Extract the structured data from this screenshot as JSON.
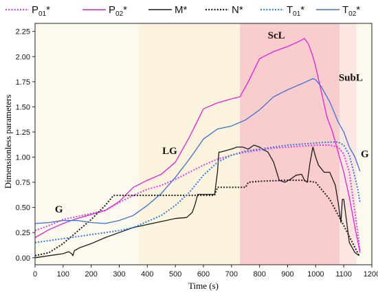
{
  "chart_data": {
    "type": "line",
    "xlabel": "Time (s)",
    "ylabel": "Dimensionless parameters",
    "xlim": [
      0,
      1200
    ],
    "ylim": [
      -0.07,
      2.33
    ],
    "xticks": [
      0,
      100,
      200,
      300,
      400,
      500,
      600,
      700,
      800,
      900,
      1000,
      1100,
      1200
    ],
    "yticks": [
      0.0,
      0.25,
      0.5,
      0.75,
      1.0,
      1.25,
      1.5,
      1.75,
      2.0,
      2.25
    ],
    "ytick_labels": [
      "0.00",
      "0.25",
      "0.50",
      "0.75",
      "1.00",
      "1.25",
      "1.50",
      "1.75",
      "2.00",
      "2.25"
    ],
    "grid": false,
    "legend_position": "top",
    "regions": [
      {
        "label": "G",
        "x": [
          0,
          370
        ],
        "color": "#fdf9ef",
        "label_x": 85,
        "label_y": 0.45
      },
      {
        "label": "LG",
        "x": [
          370,
          730
        ],
        "color": "#fbf3dd",
        "label_x": 480,
        "label_y": 1.03
      },
      {
        "label": "ScL",
        "x": [
          730,
          1085
        ],
        "color": "#f9cdcd",
        "label_x": 860,
        "label_y": 2.18
      },
      {
        "label": "SubL",
        "x": [
          1085,
          1145
        ],
        "color": "#fbe6e2",
        "label_x": 1125,
        "label_y": 1.76
      },
      {
        "label": "G",
        "x": [
          1145,
          1200
        ],
        "color": "#fdf9ef",
        "label_x": 1175,
        "label_y": 1.0
      }
    ],
    "series": [
      {
        "name": "P01*",
        "name_main": "P",
        "name_sub": "01",
        "name_suffix": "*",
        "color": "#d93fe0",
        "dash": "dot",
        "x": [
          0,
          50,
          100,
          150,
          200,
          250,
          300,
          350,
          400,
          450,
          500,
          550,
          600,
          650,
          700,
          750,
          800,
          850,
          900,
          950,
          1000,
          1050,
          1080,
          1100,
          1120,
          1140,
          1150,
          1158
        ],
        "y": [
          0.27,
          0.32,
          0.38,
          0.41,
          0.44,
          0.47,
          0.55,
          0.62,
          0.68,
          0.72,
          0.78,
          0.85,
          0.92,
          0.98,
          1.02,
          1.05,
          1.07,
          1.09,
          1.1,
          1.11,
          1.12,
          1.12,
          1.1,
          1.03,
          0.85,
          0.45,
          0.25,
          0.07
        ]
      },
      {
        "name": "P02*",
        "name_main": "P",
        "name_sub": "02",
        "name_suffix": "*",
        "color": "#e41fd6",
        "dash": "solid",
        "x": [
          0,
          50,
          100,
          150,
          200,
          250,
          300,
          350,
          400,
          450,
          500,
          550,
          600,
          650,
          700,
          730,
          760,
          800,
          850,
          900,
          940,
          960,
          975,
          990,
          1000,
          1020,
          1040,
          1060,
          1080,
          1100,
          1120,
          1140,
          1158
        ],
        "y": [
          0.2,
          0.28,
          0.34,
          0.39,
          0.43,
          0.47,
          0.56,
          0.7,
          0.77,
          0.83,
          0.95,
          1.2,
          1.48,
          1.54,
          1.58,
          1.6,
          1.75,
          1.98,
          2.05,
          2.1,
          2.15,
          2.18,
          2.12,
          2.0,
          1.9,
          1.65,
          1.4,
          1.25,
          1.05,
          0.85,
          0.6,
          0.3,
          0.05
        ]
      },
      {
        "name": "M*",
        "name_main": "M",
        "name_sub": "",
        "name_suffix": "*",
        "color": "#1a1a1a",
        "dash": "solid",
        "x": [
          0,
          50,
          100,
          120,
          130,
          135,
          140,
          160,
          200,
          250,
          300,
          350,
          400,
          450,
          500,
          540,
          560,
          570,
          580,
          600,
          610,
          630,
          640,
          650,
          655,
          660,
          700,
          720,
          740,
          760,
          780,
          800,
          810,
          830,
          850,
          870,
          890,
          910,
          930,
          950,
          960,
          970,
          980,
          990,
          1000,
          1010,
          1030,
          1050,
          1070,
          1080,
          1090,
          1095,
          1100,
          1120,
          1140,
          1155
        ],
        "y": [
          0.0,
          0.02,
          0.04,
          0.06,
          0.04,
          0.02,
          0.07,
          0.1,
          0.14,
          0.2,
          0.25,
          0.3,
          0.33,
          0.36,
          0.39,
          0.4,
          0.45,
          0.53,
          0.63,
          0.63,
          0.63,
          0.63,
          0.63,
          0.85,
          1.05,
          1.05,
          1.08,
          1.1,
          1.1,
          1.08,
          1.12,
          1.1,
          1.08,
          1.05,
          0.95,
          0.77,
          0.75,
          0.78,
          0.82,
          0.83,
          0.77,
          0.75,
          0.95,
          1.1,
          1.0,
          0.92,
          0.85,
          0.85,
          0.72,
          0.55,
          0.35,
          0.58,
          0.58,
          0.15,
          0.05,
          0.02
        ]
      },
      {
        "name": "N*",
        "name_main": "N",
        "name_sub": "",
        "name_suffix": "*",
        "color": "#1a1a1a",
        "dash": "dot",
        "x": [
          0,
          50,
          100,
          150,
          200,
          250,
          280,
          300,
          400,
          500,
          600,
          640,
          650,
          660,
          700,
          750,
          760,
          800,
          900,
          950,
          1000,
          1050,
          1100,
          1140,
          1155
        ],
        "y": [
          0.02,
          0.05,
          0.14,
          0.26,
          0.38,
          0.52,
          0.62,
          0.62,
          0.62,
          0.62,
          0.62,
          0.62,
          0.7,
          0.7,
          0.7,
          0.7,
          0.75,
          0.76,
          0.77,
          0.77,
          0.75,
          0.58,
          0.32,
          0.1,
          0.02
        ]
      },
      {
        "name": "T01*",
        "name_main": "T",
        "name_sub": "01",
        "name_suffix": "*",
        "color": "#2a7de1",
        "dash": "dot",
        "x": [
          0,
          50,
          100,
          150,
          200,
          250,
          300,
          350,
          400,
          450,
          500,
          550,
          600,
          650,
          700,
          750,
          800,
          850,
          900,
          950,
          1000,
          1050,
          1080,
          1100,
          1120,
          1140,
          1150,
          1158
        ],
        "y": [
          0.15,
          0.17,
          0.19,
          0.21,
          0.23,
          0.25,
          0.27,
          0.3,
          0.36,
          0.42,
          0.52,
          0.65,
          0.82,
          0.95,
          1.02,
          1.06,
          1.08,
          1.1,
          1.12,
          1.13,
          1.14,
          1.15,
          1.15,
          1.12,
          1.02,
          0.8,
          0.68,
          0.55
        ]
      },
      {
        "name": "T02*",
        "name_main": "T",
        "name_sub": "02",
        "name_suffix": "*",
        "color": "#3a6fd3",
        "dash": "solid",
        "x": [
          0,
          50,
          100,
          150,
          200,
          250,
          300,
          350,
          400,
          450,
          500,
          550,
          600,
          650,
          700,
          750,
          800,
          850,
          900,
          950,
          990,
          1000,
          1020,
          1050,
          1080,
          1100,
          1120,
          1140,
          1158
        ],
        "y": [
          0.34,
          0.35,
          0.37,
          0.37,
          0.35,
          0.34,
          0.37,
          0.42,
          0.52,
          0.64,
          0.8,
          0.98,
          1.18,
          1.28,
          1.31,
          1.37,
          1.47,
          1.6,
          1.67,
          1.73,
          1.78,
          1.77,
          1.7,
          1.55,
          1.35,
          1.25,
          1.1,
          1.0,
          0.86
        ]
      }
    ]
  }
}
